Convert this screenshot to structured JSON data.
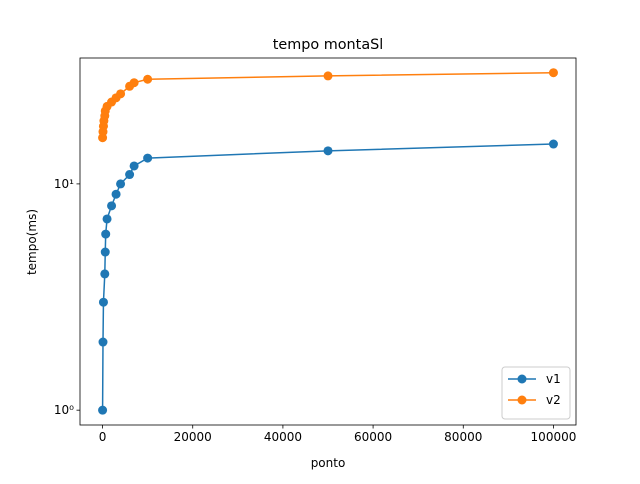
{
  "chart_data": {
    "type": "line",
    "title": "tempo montaSl",
    "x_label": "ponto",
    "y_label": "tempo(ms)",
    "y_scale": "log",
    "legend": "lower right",
    "xlim": [
      -5000,
      105000
    ],
    "xticks": [
      0,
      20000,
      40000,
      60000,
      80000,
      100000
    ],
    "ylim": [
      0.86,
      36
    ],
    "yticks": [
      {
        "value": 1,
        "label": "10⁰"
      },
      {
        "value": 10,
        "label": "10¹"
      }
    ],
    "series": [
      {
        "name": "v1",
        "color": "#1f77b4",
        "x": [
          10,
          100,
          200,
          500,
          600,
          700,
          1000,
          2000,
          3000,
          4000,
          6000,
          7000,
          10000,
          50000,
          100000
        ],
        "values": [
          1,
          2,
          3,
          4,
          5,
          6,
          7,
          8,
          9,
          10,
          11,
          12,
          13,
          14,
          15
        ]
      },
      {
        "name": "v2",
        "color": "#ff7f0e",
        "x": [
          10,
          100,
          200,
          300,
          500,
          600,
          1000,
          2000,
          3000,
          4000,
          6000,
          7000,
          10000,
          50000,
          100000
        ],
        "values": [
          16,
          17,
          18,
          19,
          20,
          21,
          22,
          23,
          24,
          25,
          27,
          28,
          29,
          30,
          31
        ]
      }
    ]
  }
}
